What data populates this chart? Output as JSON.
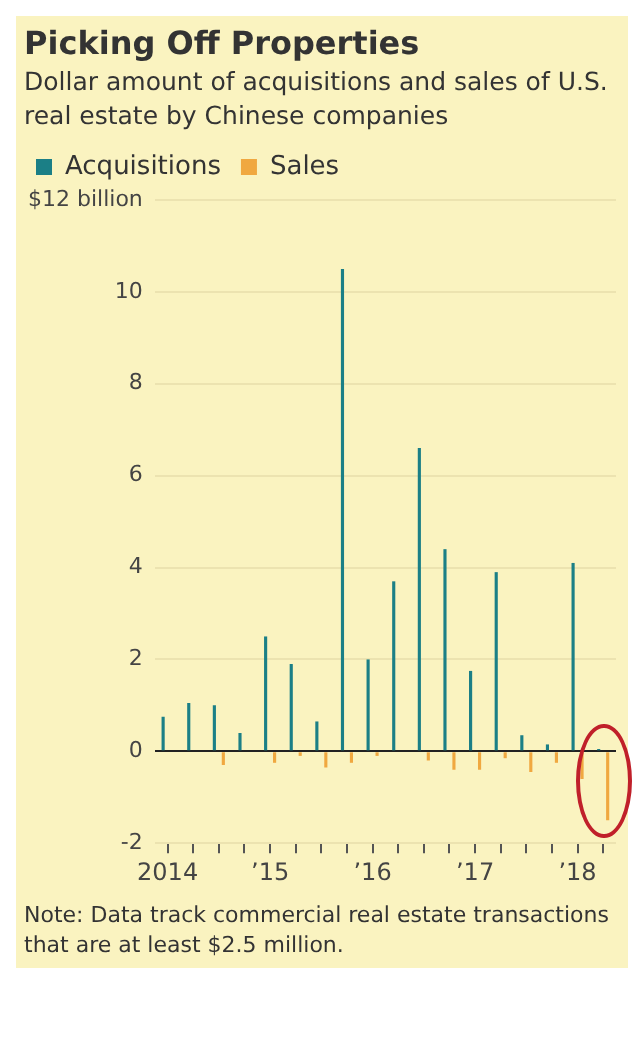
{
  "chart_data": {
    "type": "bar",
    "title": "Picking Off Properties",
    "subtitle": "Dollar amount of acquisitions and sales of U.S. real estate by Chinese companies",
    "categories": [
      "2014",
      null,
      null,
      null,
      "’15",
      null,
      null,
      null,
      "’16",
      null,
      null,
      null,
      "’17",
      null,
      null,
      null,
      "’18",
      null
    ],
    "series": [
      {
        "name": "Acquisitions",
        "color": "#1b7f86",
        "values": [
          0.75,
          1.05,
          1.0,
          0.4,
          2.5,
          1.9,
          0.65,
          10.5,
          2.0,
          3.7,
          6.6,
          4.4,
          1.75,
          3.9,
          0.35,
          0.15,
          4.1,
          0.05
        ]
      },
      {
        "name": "Sales",
        "color": "#f0a840",
        "values": [
          0,
          0,
          -0.3,
          0,
          -0.25,
          -0.1,
          -0.35,
          -0.25,
          -0.1,
          0,
          -0.2,
          -0.4,
          -0.4,
          -0.15,
          -0.45,
          -0.25,
          -0.6,
          -1.5
        ]
      }
    ],
    "ylim": [
      -2,
      12
    ],
    "yticks": [
      -2,
      0,
      2,
      4,
      6,
      8,
      10,
      {
        "value": 12,
        "label": "$12 billion"
      }
    ],
    "grid": "y",
    "legend": "top left",
    "annotations": [
      "Note: Data track commercial real estate transactions that are at least $2.5 million."
    ]
  }
}
